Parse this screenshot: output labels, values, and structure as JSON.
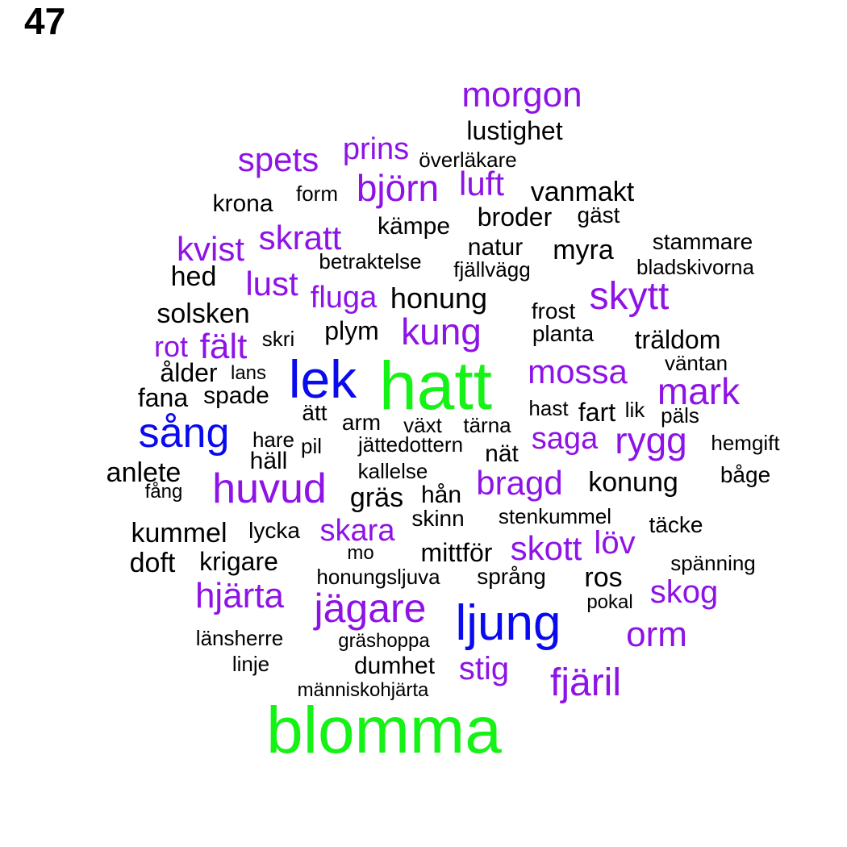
{
  "page_number": "47",
  "colors": {
    "black": "#000000",
    "purple": "#8e13e6",
    "blue": "#0a0aee",
    "green": "#15f215"
  },
  "words": [
    {
      "text": "hatt",
      "color": "green"
    },
    {
      "text": "blomma",
      "color": "green"
    },
    {
      "text": "lek",
      "color": "blue"
    },
    {
      "text": "ljung",
      "color": "blue"
    },
    {
      "text": "sång",
      "color": "blue"
    },
    {
      "text": "morgon",
      "color": "purple"
    },
    {
      "text": "lustighet",
      "color": "black"
    },
    {
      "text": "spets",
      "color": "purple"
    },
    {
      "text": "prins",
      "color": "purple"
    },
    {
      "text": "överläkare",
      "color": "black"
    },
    {
      "text": "björn",
      "color": "purple"
    },
    {
      "text": "luft",
      "color": "purple"
    },
    {
      "text": "form",
      "color": "black"
    },
    {
      "text": "vanmakt",
      "color": "black"
    },
    {
      "text": "krona",
      "color": "black"
    },
    {
      "text": "broder",
      "color": "black"
    },
    {
      "text": "gäst",
      "color": "black"
    },
    {
      "text": "kämpe",
      "color": "black"
    },
    {
      "text": "skratt",
      "color": "purple"
    },
    {
      "text": "kvist",
      "color": "purple"
    },
    {
      "text": "stammare",
      "color": "black"
    },
    {
      "text": "natur",
      "color": "black"
    },
    {
      "text": "myra",
      "color": "black"
    },
    {
      "text": "betraktelse",
      "color": "black"
    },
    {
      "text": "fjällvägg",
      "color": "black"
    },
    {
      "text": "bladskivorna",
      "color": "black"
    },
    {
      "text": "hed",
      "color": "black"
    },
    {
      "text": "lust",
      "color": "purple"
    },
    {
      "text": "fluga",
      "color": "purple"
    },
    {
      "text": "honung",
      "color": "black"
    },
    {
      "text": "skytt",
      "color": "purple"
    },
    {
      "text": "solsken",
      "color": "black"
    },
    {
      "text": "frost",
      "color": "black"
    },
    {
      "text": "plym",
      "color": "black"
    },
    {
      "text": "kung",
      "color": "purple"
    },
    {
      "text": "planta",
      "color": "black"
    },
    {
      "text": "träldom",
      "color": "black"
    },
    {
      "text": "rot",
      "color": "purple"
    },
    {
      "text": "fält",
      "color": "purple"
    },
    {
      "text": "skri",
      "color": "black"
    },
    {
      "text": "väntan",
      "color": "black"
    },
    {
      "text": "mossa",
      "color": "purple"
    },
    {
      "text": "ålder",
      "color": "black"
    },
    {
      "text": "lans",
      "color": "black"
    },
    {
      "text": "mark",
      "color": "purple"
    },
    {
      "text": "fana",
      "color": "black"
    },
    {
      "text": "spade",
      "color": "black"
    },
    {
      "text": "ätt",
      "color": "black"
    },
    {
      "text": "hast",
      "color": "black"
    },
    {
      "text": "fart",
      "color": "black"
    },
    {
      "text": "lik",
      "color": "black"
    },
    {
      "text": "päls",
      "color": "black"
    },
    {
      "text": "arm",
      "color": "black"
    },
    {
      "text": "växt",
      "color": "black"
    },
    {
      "text": "tärna",
      "color": "black"
    },
    {
      "text": "saga",
      "color": "purple"
    },
    {
      "text": "rygg",
      "color": "purple"
    },
    {
      "text": "hare",
      "color": "black"
    },
    {
      "text": "pil",
      "color": "black"
    },
    {
      "text": "jättedottern",
      "color": "black"
    },
    {
      "text": "hemgift",
      "color": "black"
    },
    {
      "text": "häll",
      "color": "black"
    },
    {
      "text": "nät",
      "color": "black"
    },
    {
      "text": "anlete",
      "color": "black"
    },
    {
      "text": "kallelse",
      "color": "black"
    },
    {
      "text": "båge",
      "color": "black"
    },
    {
      "text": "fång",
      "color": "black"
    },
    {
      "text": "huvud",
      "color": "purple"
    },
    {
      "text": "bragd",
      "color": "purple"
    },
    {
      "text": "konung",
      "color": "black"
    },
    {
      "text": "gräs",
      "color": "black"
    },
    {
      "text": "hån",
      "color": "black"
    },
    {
      "text": "skinn",
      "color": "black"
    },
    {
      "text": "stenkummel",
      "color": "black"
    },
    {
      "text": "täcke",
      "color": "black"
    },
    {
      "text": "kummel",
      "color": "black"
    },
    {
      "text": "lycka",
      "color": "black"
    },
    {
      "text": "skara",
      "color": "purple"
    },
    {
      "text": "löv",
      "color": "purple"
    },
    {
      "text": "mo",
      "color": "black"
    },
    {
      "text": "mittför",
      "color": "black"
    },
    {
      "text": "skott",
      "color": "purple"
    },
    {
      "text": "doft",
      "color": "black"
    },
    {
      "text": "krigare",
      "color": "black"
    },
    {
      "text": "spänning",
      "color": "black"
    },
    {
      "text": "honungsljuva",
      "color": "black"
    },
    {
      "text": "språng",
      "color": "black"
    },
    {
      "text": "ros",
      "color": "black"
    },
    {
      "text": "hjärta",
      "color": "purple"
    },
    {
      "text": "skog",
      "color": "purple"
    },
    {
      "text": "jägare",
      "color": "purple"
    },
    {
      "text": "pokal",
      "color": "black"
    },
    {
      "text": "orm",
      "color": "purple"
    },
    {
      "text": "länsherre",
      "color": "black"
    },
    {
      "text": "gräshoppa",
      "color": "black"
    },
    {
      "text": "linje",
      "color": "black"
    },
    {
      "text": "dumhet",
      "color": "black"
    },
    {
      "text": "stig",
      "color": "purple"
    },
    {
      "text": "fjäril",
      "color": "purple"
    },
    {
      "text": "människohjärta",
      "color": "black"
    }
  ]
}
